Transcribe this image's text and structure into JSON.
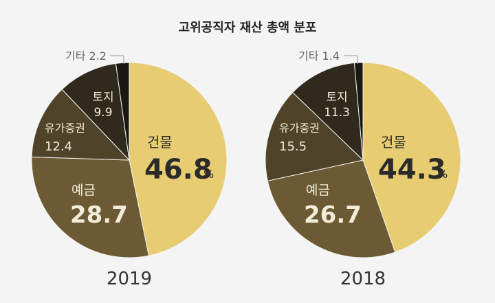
{
  "title": "고위공직자 재산 총액 분포",
  "chart_data": [
    {
      "type": "pie",
      "year": "2019",
      "slices": [
        {
          "label": "건물",
          "value": 46.8,
          "color": "#e8cc72"
        },
        {
          "label": "예금",
          "value": 28.7,
          "color": "#6b5a33"
        },
        {
          "label": "유가증권",
          "value": 12.4,
          "color": "#4f4429"
        },
        {
          "label": "토지",
          "value": 9.9,
          "color": "#2f2a1c"
        },
        {
          "label": "기타",
          "value": 2.2,
          "color": "#1b1813"
        }
      ],
      "unit": "%",
      "value_text": {
        "building": "46.8",
        "deposit": "28.7",
        "securities": "12.4",
        "land": "9.9"
      },
      "other_text": "기타 2.2"
    },
    {
      "type": "pie",
      "year": "2018",
      "slices": [
        {
          "label": "건물",
          "value": 44.3,
          "color": "#e8cc72"
        },
        {
          "label": "예금",
          "value": 26.7,
          "color": "#6b5a33"
        },
        {
          "label": "유가증권",
          "value": 15.5,
          "color": "#4f4429"
        },
        {
          "label": "토지",
          "value": 11.3,
          "color": "#2f2a1c"
        },
        {
          "label": "기타",
          "value": 1.4,
          "color": "#1b1813"
        }
      ],
      "unit": "%",
      "value_text": {
        "building": "44.3",
        "deposit": "26.7",
        "securities": "15.5",
        "land": "11.3"
      },
      "other_text": "기타 1.4"
    }
  ]
}
